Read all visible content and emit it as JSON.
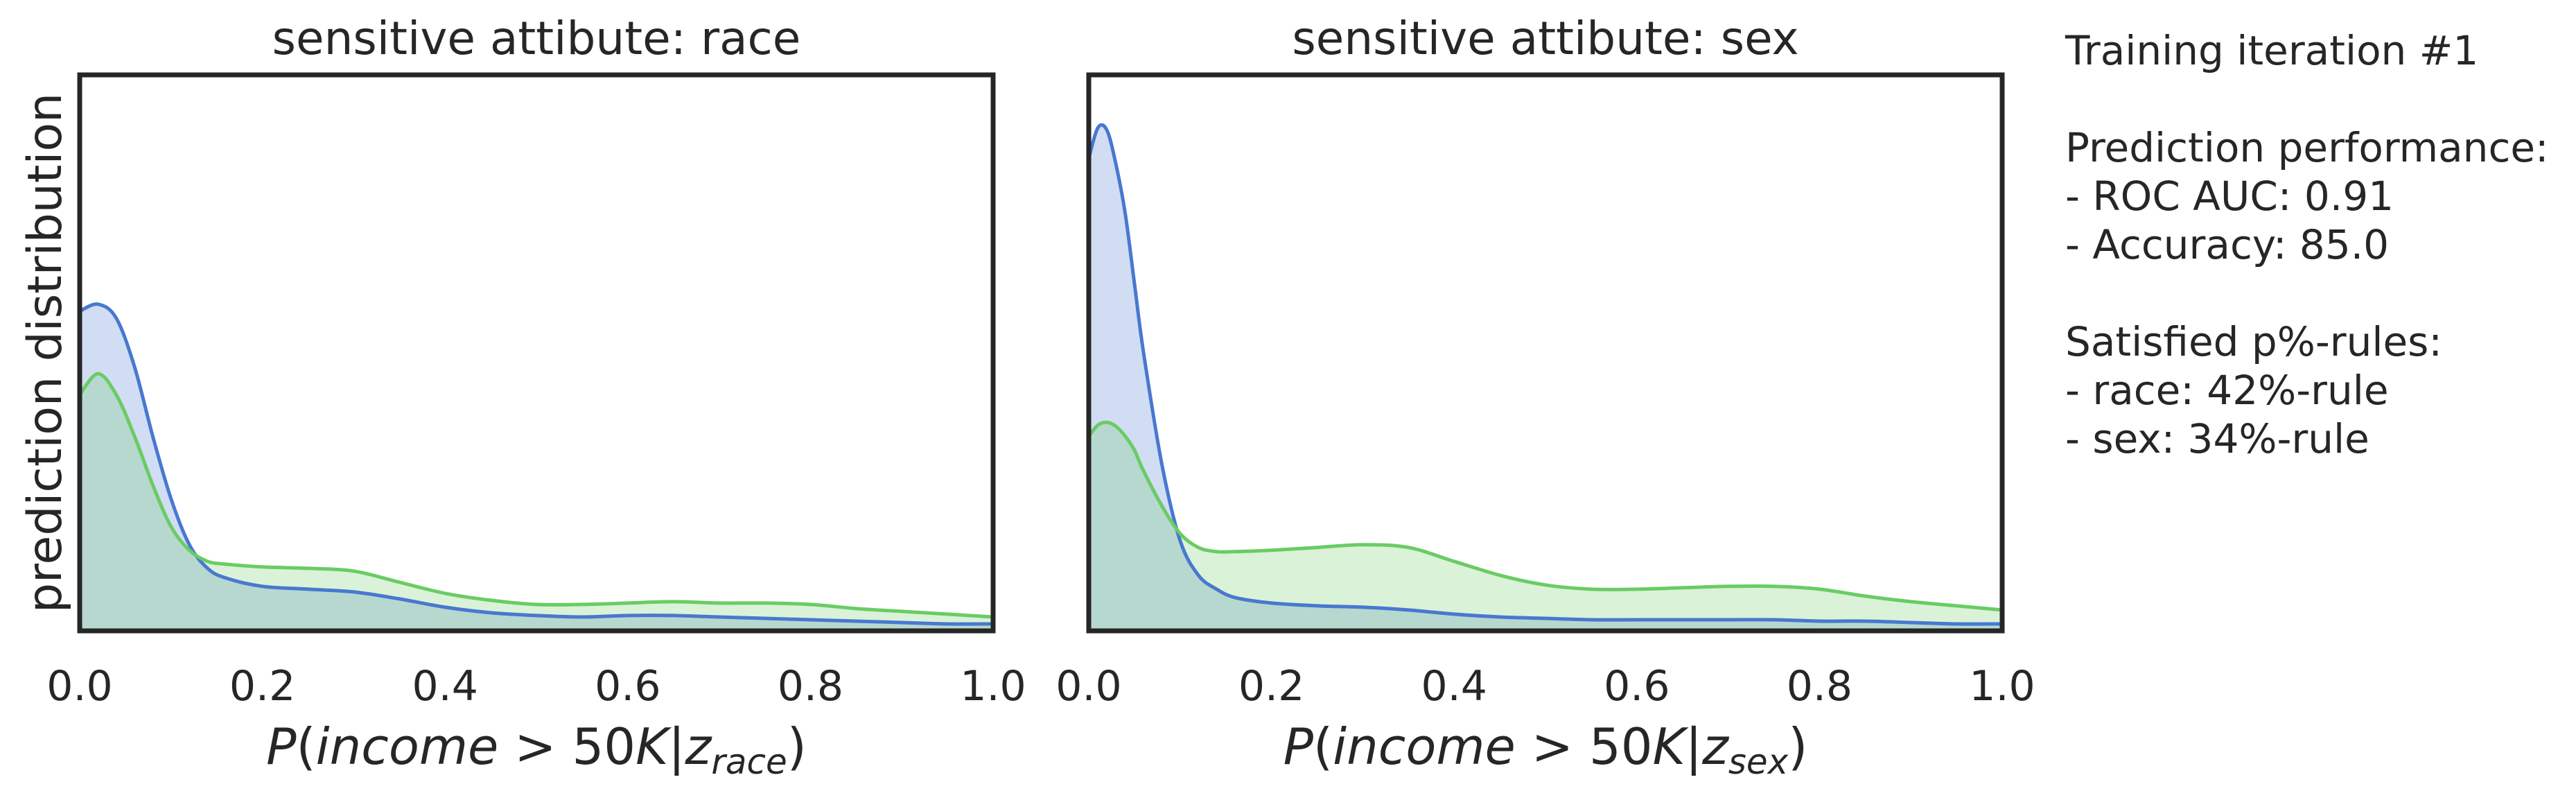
{
  "chart_data": [
    {
      "type": "area",
      "title": "sensitive attibute: race",
      "xlabel": "P(income > 50K|z_race)",
      "ylabel": "prediction distribution",
      "xlim": [
        0.0,
        1.0
      ],
      "xticks": [
        "0.0",
        "0.2",
        "0.4",
        "0.6",
        "0.8",
        "1.0"
      ],
      "grid": false,
      "series": [
        {
          "color": "#4878d0",
          "x": [
            0.0,
            0.02,
            0.04,
            0.06,
            0.08,
            0.1,
            0.12,
            0.14,
            0.16,
            0.2,
            0.25,
            0.3,
            0.35,
            0.4,
            0.45,
            0.5,
            0.55,
            0.6,
            0.65,
            0.7,
            0.75,
            0.8,
            0.85,
            0.9,
            0.95,
            1.0
          ],
          "y": [
            2.3,
            2.35,
            2.25,
            1.9,
            1.4,
            0.95,
            0.62,
            0.45,
            0.38,
            0.32,
            0.3,
            0.28,
            0.23,
            0.17,
            0.13,
            0.11,
            0.1,
            0.11,
            0.11,
            0.1,
            0.09,
            0.08,
            0.07,
            0.06,
            0.05,
            0.05
          ]
        },
        {
          "color": "#6acc64",
          "x": [
            0.0,
            0.02,
            0.04,
            0.06,
            0.08,
            0.1,
            0.12,
            0.14,
            0.16,
            0.2,
            0.25,
            0.3,
            0.35,
            0.4,
            0.45,
            0.5,
            0.55,
            0.6,
            0.65,
            0.7,
            0.75,
            0.8,
            0.85,
            0.9,
            0.95,
            1.0
          ],
          "y": [
            1.7,
            1.85,
            1.7,
            1.4,
            1.05,
            0.75,
            0.58,
            0.5,
            0.48,
            0.46,
            0.45,
            0.43,
            0.35,
            0.27,
            0.22,
            0.19,
            0.19,
            0.2,
            0.21,
            0.2,
            0.2,
            0.19,
            0.16,
            0.14,
            0.12,
            0.1
          ]
        }
      ]
    },
    {
      "type": "area",
      "title": "sensitive attibute: sex",
      "xlabel": "P(income > 50K|z_sex)",
      "ylabel": "",
      "xlim": [
        0.0,
        1.0
      ],
      "xticks": [
        "0.0",
        "0.2",
        "0.4",
        "0.6",
        "0.8",
        "1.0"
      ],
      "grid": false,
      "series": [
        {
          "color": "#4878d0",
          "x": [
            0.0,
            0.01,
            0.02,
            0.03,
            0.04,
            0.05,
            0.06,
            0.08,
            0.1,
            0.12,
            0.14,
            0.16,
            0.2,
            0.25,
            0.3,
            0.35,
            0.4,
            0.45,
            0.5,
            0.55,
            0.6,
            0.65,
            0.7,
            0.75,
            0.8,
            0.85,
            0.9,
            0.95,
            1.0
          ],
          "y": [
            3.4,
            3.62,
            3.6,
            3.35,
            3.0,
            2.5,
            2.0,
            1.2,
            0.65,
            0.4,
            0.3,
            0.24,
            0.2,
            0.18,
            0.17,
            0.15,
            0.12,
            0.1,
            0.09,
            0.08,
            0.08,
            0.08,
            0.08,
            0.08,
            0.07,
            0.07,
            0.06,
            0.05,
            0.05
          ]
        },
        {
          "color": "#6acc64",
          "x": [
            0.0,
            0.01,
            0.02,
            0.03,
            0.04,
            0.05,
            0.06,
            0.08,
            0.1,
            0.12,
            0.14,
            0.16,
            0.2,
            0.25,
            0.3,
            0.35,
            0.4,
            0.45,
            0.5,
            0.55,
            0.6,
            0.65,
            0.7,
            0.75,
            0.8,
            0.85,
            0.9,
            0.95,
            1.0
          ],
          "y": [
            1.4,
            1.48,
            1.5,
            1.47,
            1.4,
            1.3,
            1.15,
            0.9,
            0.7,
            0.6,
            0.57,
            0.57,
            0.58,
            0.6,
            0.62,
            0.6,
            0.5,
            0.4,
            0.33,
            0.3,
            0.3,
            0.31,
            0.32,
            0.32,
            0.3,
            0.25,
            0.21,
            0.18,
            0.15
          ]
        }
      ]
    }
  ],
  "annotation": {
    "iteration": "Training iteration #1",
    "perf_header": "Prediction performance:",
    "roc_auc": "- ROC AUC: 0.91",
    "accuracy": "- Accuracy: 85.0",
    "rules_header": "Satisfied p%-rules:",
    "race_rule": "- race: 42%-rule",
    "sex_rule": "- sex: 34%-rule"
  }
}
